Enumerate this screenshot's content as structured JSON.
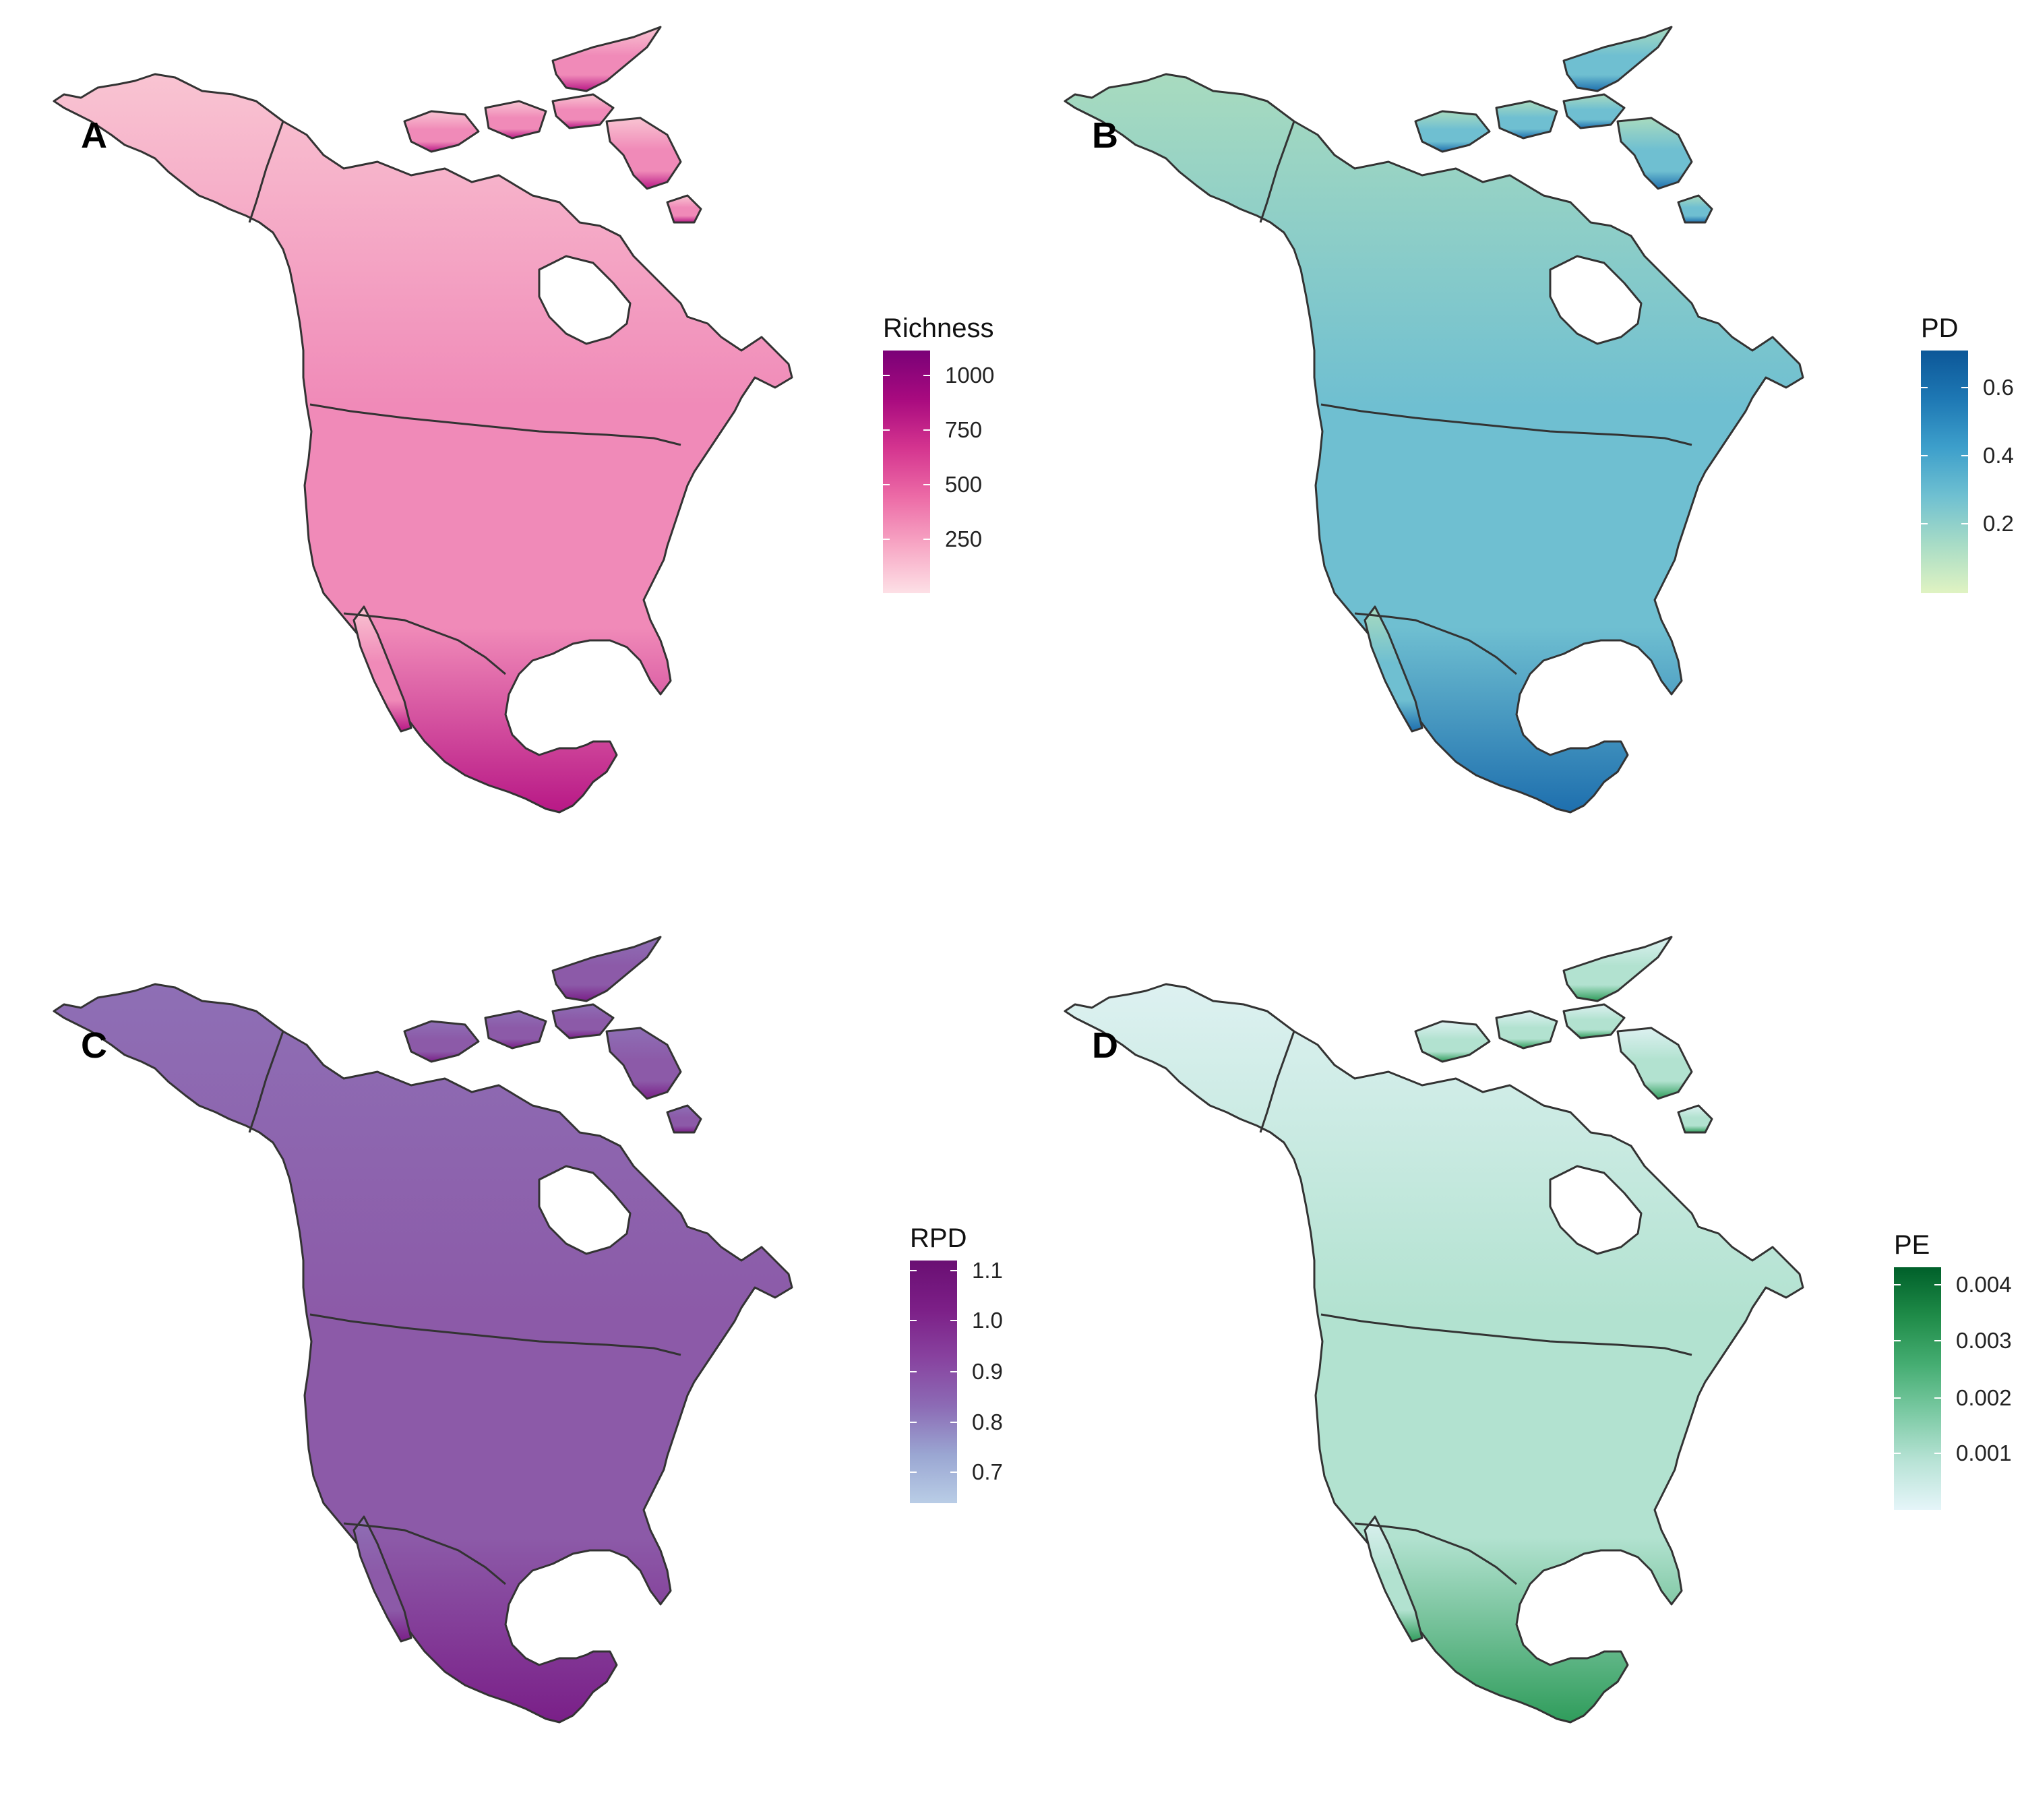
{
  "panels": [
    {
      "letter": "A",
      "legend_title": "Richness",
      "colors": [
        "#fde0e6",
        "#f7a6c4",
        "#ec6aa6",
        "#d4348f",
        "#a80a7f",
        "#7a0177"
      ],
      "base_fill": "#f08ab8",
      "north_fill": "#f9c4d2",
      "south_fill": "#b81886",
      "ticks": [
        "1000",
        "750",
        "500",
        "250"
      ],
      "tick_fracs": [
        0.9,
        0.675,
        0.45,
        0.225
      ]
    },
    {
      "letter": "B",
      "legend_title": "PD",
      "colors": [
        "#e0f3c2",
        "#a8dcc6",
        "#6fc0d1",
        "#3d9fcb",
        "#1e78b4",
        "#0c5798"
      ],
      "base_fill": "#6fbfd1",
      "north_fill": "#a8dbbf",
      "south_fill": "#1e6fae",
      "ticks": [
        "0.6",
        "0.4",
        "0.2"
      ],
      "tick_fracs": [
        0.85,
        0.57,
        0.29
      ]
    },
    {
      "letter": "C",
      "legend_title": "RPD",
      "colors": [
        "#b9cde6",
        "#9aa6d2",
        "#8c6bb5",
        "#88429f",
        "#7c1f87",
        "#6a0f73"
      ],
      "base_fill": "#8c5aa8",
      "north_fill": "#8e6fb5",
      "south_fill": "#7a1f88",
      "ticks": [
        "1.1",
        "1.0",
        "0.9",
        "0.8",
        "0.7"
      ],
      "tick_fracs": [
        0.96,
        0.755,
        0.545,
        0.335,
        0.13
      ]
    },
    {
      "letter": "D",
      "legend_title": "PE",
      "colors": [
        "#e5f5f9",
        "#b8e3d6",
        "#7ccaa4",
        "#45ad72",
        "#1f8b48",
        "#00602a"
      ],
      "base_fill": "#b2e2d0",
      "north_fill": "#ddf1f1",
      "south_fill": "#2f9c5b",
      "ticks": [
        "0.004",
        "0.003",
        "0.002",
        "0.001"
      ],
      "tick_fracs": [
        0.93,
        0.7,
        0.465,
        0.235
      ]
    }
  ]
}
